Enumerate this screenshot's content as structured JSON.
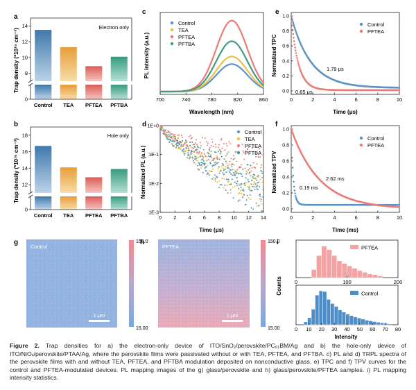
{
  "panels": {
    "a": {
      "label": "a",
      "annotation": "Electron only",
      "y_title": "Trap density (*10¹⁵ cm⁻³)",
      "chart_data": {
        "type": "bar",
        "categories": [
          "Control",
          "TEA",
          "PFTEA",
          "PFTBA"
        ],
        "values": [
          13.5,
          11.3,
          8.9,
          10.1
        ],
        "ylim": [
          0,
          15
        ],
        "axis_break": [
          2,
          7
        ],
        "yticks": [
          0,
          8,
          10,
          12,
          14
        ],
        "colors": [
          "#4a84b5",
          "#e8a94a",
          "#df6c66",
          "#44a58c"
        ]
      }
    },
    "b": {
      "label": "b",
      "annotation": "Hole only",
      "y_title": "Trap density (*10¹⁵ cm⁻³)",
      "chart_data": {
        "type": "bar",
        "categories": [
          "Control",
          "TEA",
          "PFTEA",
          "PFTBA"
        ],
        "values": [
          16.7,
          14.1,
          12.9,
          13.9
        ],
        "ylim": [
          0,
          19
        ],
        "axis_break": [
          2,
          11
        ],
        "yticks": [
          0,
          12,
          14,
          16,
          18
        ],
        "colors": [
          "#4a84b5",
          "#e8a94a",
          "#df6c66",
          "#44a58c"
        ]
      }
    },
    "c": {
      "label": "c",
      "x_title": "Wavelength (nm)",
      "y_title": "PL intensity (a.u.)",
      "chart_data": {
        "type": "line",
        "xlim": [
          700,
          860
        ],
        "xticks": [
          700,
          740,
          780,
          820,
          860
        ],
        "center": 811,
        "width": 24,
        "series": [
          {
            "name": "Control",
            "peak": 0.36,
            "color": "#5c93c6"
          },
          {
            "name": "TEA",
            "peak": 0.46,
            "color": "#ecc043"
          },
          {
            "name": "PFTEA",
            "peak": 0.93,
            "color": "#ea7b76"
          },
          {
            "name": "PFTBA",
            "peak": 0.66,
            "color": "#3f9a83"
          }
        ]
      }
    },
    "d": {
      "label": "d",
      "x_title": "Time (μs)",
      "y_title": "Normalized PL (a.u.)",
      "chart_data": {
        "type": "scatter",
        "xlim": [
          0,
          14
        ],
        "xticks": [
          0,
          2,
          4,
          6,
          8,
          10,
          12,
          14
        ],
        "ylim_log": [
          0.001,
          1
        ],
        "ytick_labels": [
          "1E+0",
          "1E-1",
          "1E-2",
          "1E-3"
        ],
        "series": [
          {
            "name": "Control",
            "tau": 2.4,
            "noise_floor": 0.0025,
            "color": "#5c93c6"
          },
          {
            "name": "TEA",
            "tau": 2.6,
            "noise_floor": 0.004,
            "color": "#ecc043"
          },
          {
            "name": "PFTEA",
            "tau": 5.0,
            "noise_floor": 0.03,
            "color": "#ea7b76"
          },
          {
            "name": "PFTBA",
            "tau": 3.1,
            "noise_floor": 0.006,
            "color": "#3f9a83"
          }
        ]
      }
    },
    "e": {
      "label": "e",
      "x_title": "Time (μs)",
      "y_title": "Normalized TPC",
      "annotations": [
        "1.79 μs",
        "0.65 μs"
      ],
      "chart_data": {
        "type": "line",
        "xlim": [
          0,
          10
        ],
        "ylim": [
          0,
          1
        ],
        "xticks": [
          0,
          2,
          4,
          6,
          8,
          10
        ],
        "yticks": [
          0.0,
          0.2,
          0.4,
          0.6,
          0.8,
          1.0
        ],
        "series": [
          {
            "name": "Control",
            "tau_us": 1.79,
            "baseline": 0.04,
            "color": "#5c93c6"
          },
          {
            "name": "PFTEA",
            "tau_us": 0.65,
            "baseline": 0.01,
            "color": "#ea7b76"
          }
        ]
      }
    },
    "f": {
      "label": "f",
      "x_title": "Time (ms)",
      "y_title": "Normalized TPV",
      "annotations": [
        "2.62 ms",
        "0.19 ms"
      ],
      "chart_data": {
        "type": "line",
        "xlim": [
          0,
          10
        ],
        "ylim": [
          0,
          1
        ],
        "xticks": [
          0,
          2,
          4,
          6,
          8,
          10
        ],
        "yticks": [
          0.0,
          0.2,
          0.4,
          0.6,
          0.8,
          1.0
        ],
        "series": [
          {
            "name": "Control",
            "tau_ms": 0.19,
            "baseline": 0.05,
            "color": "#5c93c6"
          },
          {
            "name": "PFTEA",
            "tau_ms": 2.62,
            "baseline": 0.0,
            "color": "#ea7b76"
          }
        ]
      }
    },
    "g": {
      "label": "g",
      "sample": "Control",
      "scale": "1 μm",
      "cbar_max": "150.0",
      "cbar_min": "15.00"
    },
    "h": {
      "label": "h",
      "sample": "PFTEA",
      "scale": "1 μm",
      "cbar_max": "150.0",
      "cbar_min": "15.00"
    },
    "i": {
      "label": "i",
      "x_title": "Intensity",
      "y_title": "Counts",
      "chart_data": [
        {
          "type": "bar",
          "name": "PFTEA",
          "color": "#f4a3a4",
          "xlim": [
            0,
            200
          ],
          "xticks": [
            0,
            100,
            200
          ],
          "bin_width": 10,
          "bin_starts": [
            30,
            40,
            50,
            60,
            70,
            80,
            90,
            100,
            110,
            120,
            130,
            140,
            150,
            160
          ],
          "counts": [
            120,
            330,
            470,
            420,
            330,
            250,
            210,
            175,
            140,
            105,
            80,
            55,
            45,
            25
          ]
        },
        {
          "type": "bar",
          "name": "Control",
          "color": "#4f8dc9",
          "xlim": [
            0,
            80
          ],
          "xticks": [
            0,
            10,
            20,
            30,
            40,
            50,
            60,
            70,
            80
          ],
          "bin_width": 3,
          "bin_starts": [
            6,
            9,
            12,
            15,
            18,
            21,
            24,
            27,
            30,
            33,
            36,
            39,
            42,
            45,
            48,
            51,
            54,
            57,
            60,
            63,
            66,
            69,
            72
          ],
          "counts": [
            40,
            100,
            220,
            420,
            480,
            470,
            360,
            300,
            260,
            210,
            180,
            150,
            130,
            110,
            95,
            80,
            65,
            55,
            45,
            35,
            28,
            20,
            12
          ]
        }
      ]
    }
  },
  "caption": {
    "label": "Figure 2.",
    "text": "Trap densities for a) the electron-only device of ITO/SnO₂/perovskite/PC₆₁BM/Ag and b) the hole-only device of ITO/NiOₓ/perovskite/PTAA/Ag, where the perovskite films were passivated without or with TEA, PFTEA, and PFTBA. c) PL and d) TRPL spectra of the perovskite films with and without TEA, PFTEA, and PFTBA modulation deposited on nonconductive glass. e) TPC and f) TPV curves for the control and PFTEA-modulated devices. PL mapping images of the g) glass/perovskite and h) glass/perovskite/PFTEA samples. i) PL mapping intensity statistics."
  }
}
